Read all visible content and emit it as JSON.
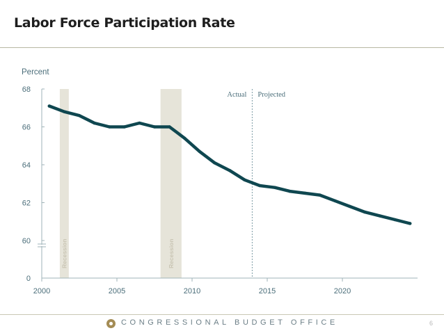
{
  "header": {
    "title": "Labor Force Participation Rate"
  },
  "footer": {
    "org": "CONGRESSIONAL BUDGET OFFICE",
    "page_number": "6"
  },
  "colors": {
    "line": "#0f4750",
    "recession_band": "#e6e4d9",
    "axis_text": "#4b6e7a",
    "divider": "#7a9aa3"
  },
  "chart_data": {
    "type": "line",
    "title": "",
    "ylabel": "Percent",
    "xlabel": "",
    "ylim": [
      58.8,
      68
    ],
    "y_axis_break": true,
    "yticks": [
      0,
      60,
      62,
      64,
      66,
      68
    ],
    "xticks": [
      2000,
      2005,
      2010,
      2015,
      2020
    ],
    "xlim": [
      2000,
      2025
    ],
    "recessions": [
      {
        "label": "Recession",
        "start": 2001.2,
        "end": 2001.8
      },
      {
        "label": "Recession",
        "start": 2007.9,
        "end": 2009.3
      }
    ],
    "divider": {
      "x": 2014,
      "left_label": "Actual",
      "right_label": "Projected"
    },
    "series": [
      {
        "x": [
          2000.5,
          2001.5,
          2002.5,
          2003.5,
          2004.5,
          2005.5,
          2006.5,
          2007.5,
          2008.5,
          2009.5,
          2010.5,
          2011.5,
          2012.5,
          2013.5,
          2014.5,
          2015.5,
          2016.5,
          2017.5,
          2018.5,
          2019.5,
          2020.5,
          2021.5,
          2022.5,
          2023.5,
          2024.5
        ],
        "values": [
          67.1,
          66.8,
          66.6,
          66.2,
          66.0,
          66.0,
          66.2,
          66.0,
          66.0,
          65.4,
          64.7,
          64.1,
          63.7,
          63.2,
          62.9,
          62.8,
          62.6,
          62.5,
          62.4,
          62.1,
          61.8,
          61.5,
          61.3,
          61.1,
          60.9
        ]
      }
    ]
  }
}
